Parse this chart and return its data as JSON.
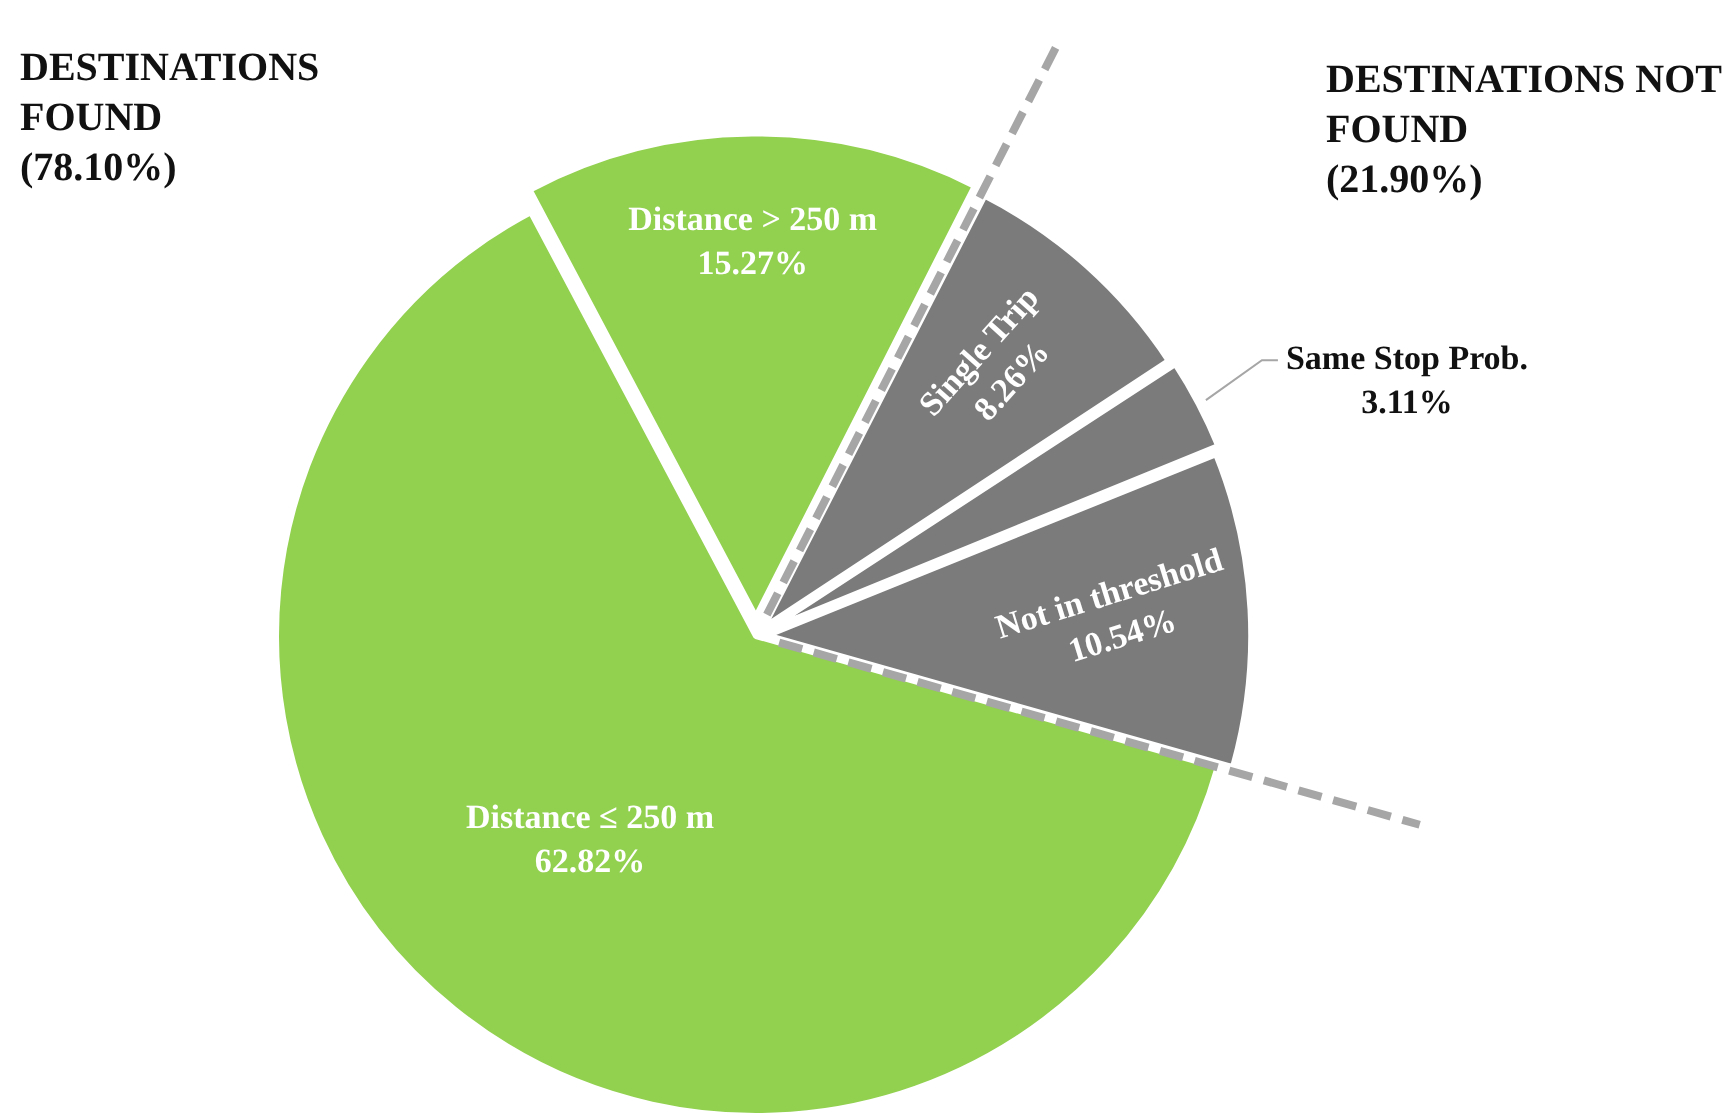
{
  "chart_data": {
    "type": "pie",
    "categories": [
      "Single Trip",
      "Same Stop Prob.",
      "Not in threshold",
      "Distance ≤ 250 m",
      "Distance > 250 m"
    ],
    "values": [
      8.26,
      3.11,
      10.54,
      62.82,
      15.27
    ],
    "value_labels": [
      "8.26%",
      "3.11%",
      "10.54%",
      "62.82%",
      "15.27%"
    ],
    "colors": [
      "#7b7b7b",
      "#7b7b7b",
      "#7b7b7b",
      "#92d050",
      "#92d050"
    ],
    "annotations": [
      "DESTINATIONS FOUND",
      "(78.10%)",
      "DESTINATIONS NOT FOUND",
      "(21.90%)"
    ],
    "legend": false
  }
}
